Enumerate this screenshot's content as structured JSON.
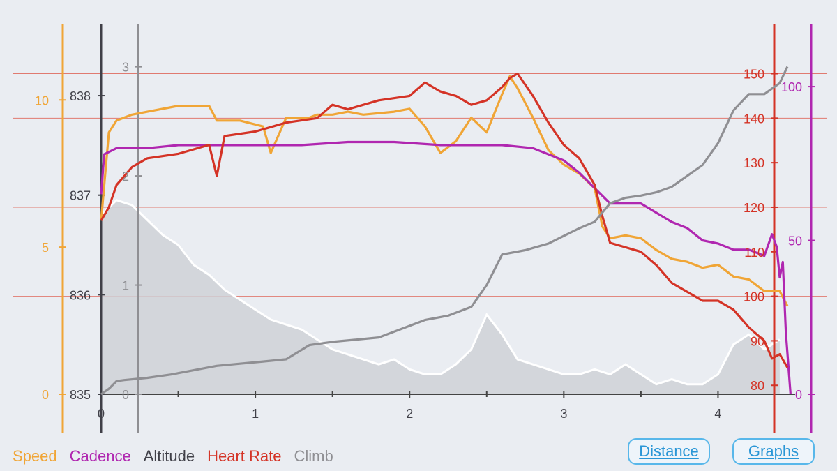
{
  "chart_data": {
    "type": "line",
    "xlabel": "",
    "x_ticks": [
      "0",
      "1",
      "2",
      "3",
      "4"
    ],
    "xlim": [
      0,
      4.5
    ],
    "axes": {
      "speed": {
        "color": "#f0a536",
        "ticks": [
          "0",
          "5",
          "10"
        ],
        "range": [
          0,
          11.5
        ]
      },
      "altitude": {
        "color": "#404048",
        "ticks": [
          "835",
          "836",
          "837",
          "838"
        ],
        "range": [
          835,
          838.4
        ]
      },
      "climb": {
        "color": "#8f8f93",
        "ticks": [
          "0",
          "1",
          "2",
          "3"
        ],
        "range": [
          0,
          3.1
        ]
      },
      "heart_rate": {
        "color": "#d43326",
        "ticks": [
          "80",
          "90",
          "100",
          "110",
          "120",
          "130",
          "140",
          "150"
        ],
        "range": [
          78,
          154
        ]
      },
      "cadence": {
        "color": "#b027b0",
        "ticks": [
          "0",
          "50",
          "100"
        ],
        "range": [
          0,
          110
        ]
      }
    },
    "series": [
      {
        "name": "Speed",
        "axis": "speed",
        "x": [
          0,
          0.05,
          0.1,
          0.2,
          0.3,
          0.5,
          0.7,
          0.75,
          0.9,
          1.05,
          1.1,
          1.2,
          1.35,
          1.4,
          1.5,
          1.6,
          1.7,
          1.9,
          2.0,
          2.1,
          2.2,
          2.3,
          2.4,
          2.5,
          2.6,
          2.65,
          2.7,
          2.8,
          2.9,
          3.0,
          3.1,
          3.2,
          3.25,
          3.3,
          3.4,
          3.5,
          3.6,
          3.7,
          3.8,
          3.9,
          4.0,
          4.1,
          4.2,
          4.3,
          4.4,
          4.45
        ],
        "values": [
          5.9,
          8.9,
          9.3,
          9.5,
          9.6,
          9.8,
          9.8,
          9.3,
          9.3,
          9.1,
          8.2,
          9.4,
          9.4,
          9.5,
          9.5,
          9.6,
          9.5,
          9.6,
          9.7,
          9.1,
          8.2,
          8.6,
          9.4,
          8.9,
          10.2,
          10.8,
          10.4,
          9.4,
          8.3,
          7.8,
          7.5,
          7.0,
          5.7,
          5.3,
          5.4,
          5.3,
          4.9,
          4.6,
          4.5,
          4.3,
          4.4,
          4.0,
          3.9,
          3.5,
          3.5,
          3.0
        ]
      },
      {
        "name": "Cadence",
        "axis": "cadence",
        "x": [
          0,
          0.02,
          0.1,
          0.3,
          0.5,
          0.7,
          1.0,
          1.3,
          1.6,
          1.9,
          2.2,
          2.4,
          2.6,
          2.8,
          3.0,
          3.1,
          3.2,
          3.3,
          3.4,
          3.5,
          3.6,
          3.7,
          3.8,
          3.9,
          4.0,
          4.1,
          4.2,
          4.3,
          4.35,
          4.38,
          4.4,
          4.42,
          4.44,
          4.47
        ],
        "values": [
          65,
          78,
          80,
          80,
          81,
          81,
          81,
          81,
          82,
          82,
          81,
          81,
          81,
          80,
          76,
          72,
          67,
          62,
          62,
          62,
          59,
          56,
          54,
          50,
          49,
          47,
          47,
          45,
          52,
          48,
          38,
          43,
          20,
          0
        ]
      },
      {
        "name": "Altitude",
        "axis": "altitude",
        "x": [
          0,
          0.1,
          0.2,
          0.3,
          0.4,
          0.5,
          0.6,
          0.7,
          0.8,
          0.9,
          1.0,
          1.1,
          1.2,
          1.3,
          1.4,
          1.5,
          1.6,
          1.7,
          1.8,
          1.9,
          2.0,
          2.1,
          2.2,
          2.3,
          2.4,
          2.5,
          2.6,
          2.7,
          2.8,
          2.9,
          3.0,
          3.1,
          3.2,
          3.3,
          3.4,
          3.5,
          3.6,
          3.7,
          3.8,
          3.9,
          4.0,
          4.1,
          4.2,
          4.3,
          4.4
        ],
        "values": [
          836.8,
          836.95,
          836.9,
          836.75,
          836.6,
          836.5,
          836.3,
          836.2,
          836.05,
          835.95,
          835.85,
          835.75,
          835.7,
          835.65,
          835.55,
          835.45,
          835.4,
          835.35,
          835.3,
          835.35,
          835.25,
          835.2,
          835.2,
          835.3,
          835.45,
          835.8,
          835.6,
          835.35,
          835.3,
          835.25,
          835.2,
          835.2,
          835.25,
          835.2,
          835.3,
          835.2,
          835.1,
          835.15,
          835.1,
          835.1,
          835.2,
          835.5,
          835.6,
          835.45,
          835.55
        ]
      },
      {
        "name": "Heart Rate",
        "axis": "heart_rate",
        "x": [
          0,
          0.05,
          0.1,
          0.2,
          0.3,
          0.5,
          0.7,
          0.75,
          0.8,
          1.0,
          1.2,
          1.4,
          1.5,
          1.6,
          1.8,
          2.0,
          2.1,
          2.2,
          2.3,
          2.4,
          2.5,
          2.6,
          2.65,
          2.7,
          2.8,
          2.9,
          3.0,
          3.1,
          3.2,
          3.25,
          3.3,
          3.4,
          3.5,
          3.6,
          3.7,
          3.8,
          3.9,
          4.0,
          4.1,
          4.2,
          4.3,
          4.35,
          4.4,
          4.45
        ],
        "values": [
          117,
          120,
          125,
          129,
          131,
          132,
          134,
          127,
          136,
          137,
          139,
          140,
          143,
          142,
          144,
          145,
          148,
          146,
          145,
          143,
          144,
          147,
          149,
          150,
          145,
          139,
          134,
          131,
          125,
          118,
          112,
          111,
          110,
          107,
          103,
          101,
          99,
          99,
          97,
          93,
          90,
          86,
          87,
          84
        ]
      },
      {
        "name": "Climb",
        "axis": "climb",
        "x": [
          0,
          0.05,
          0.1,
          0.15,
          0.3,
          0.45,
          0.6,
          0.75,
          0.9,
          1.05,
          1.2,
          1.35,
          1.5,
          1.65,
          1.8,
          1.95,
          2.1,
          2.25,
          2.4,
          2.5,
          2.6,
          2.75,
          2.9,
          3.0,
          3.1,
          3.2,
          3.3,
          3.4,
          3.5,
          3.6,
          3.7,
          3.8,
          3.9,
          4.0,
          4.1,
          4.2,
          4.3,
          4.35,
          4.4,
          4.45
        ],
        "values": [
          0,
          0.05,
          0.12,
          0.13,
          0.15,
          0.18,
          0.22,
          0.26,
          0.28,
          0.3,
          0.32,
          0.45,
          0.48,
          0.5,
          0.52,
          0.6,
          0.68,
          0.72,
          0.8,
          1.0,
          1.28,
          1.32,
          1.38,
          1.45,
          1.52,
          1.58,
          1.75,
          1.8,
          1.82,
          1.85,
          1.9,
          2.0,
          2.1,
          2.3,
          2.6,
          2.75,
          2.75,
          2.8,
          2.85,
          3.0
        ]
      }
    ],
    "gridlines_heart_rate": [
      100,
      120,
      140,
      150
    ]
  },
  "legend": [
    {
      "label": "Speed",
      "color": "#f0a536"
    },
    {
      "label": "Cadence",
      "color": "#b027b0"
    },
    {
      "label": "Altitude",
      "color": "#404048"
    },
    {
      "label": "Heart Rate",
      "color": "#d43326"
    },
    {
      "label": "Climb",
      "color": "#8f8f93"
    }
  ],
  "buttons": {
    "distance": "Distance",
    "graphs": "Graphs"
  }
}
